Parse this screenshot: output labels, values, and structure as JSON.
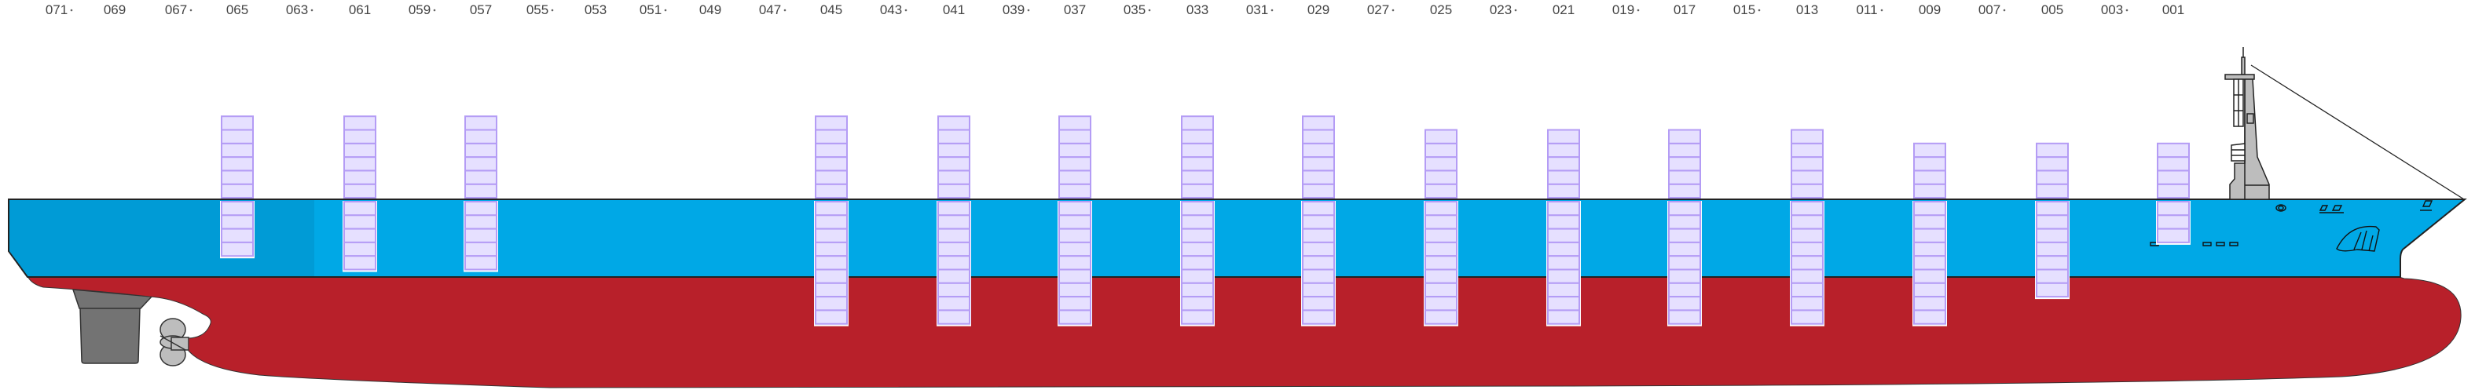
{
  "bay_labels": [
    {
      "text": "071",
      "dot": true
    },
    {
      "text": "069",
      "dot": false
    },
    {
      "text": "067",
      "dot": true
    },
    {
      "text": "065",
      "dot": false
    },
    {
      "text": "063",
      "dot": true
    },
    {
      "text": "061",
      "dot": false
    },
    {
      "text": "059",
      "dot": true
    },
    {
      "text": "057",
      "dot": false
    },
    {
      "text": "055",
      "dot": true
    },
    {
      "text": "053",
      "dot": false
    },
    {
      "text": "051",
      "dot": true
    },
    {
      "text": "049",
      "dot": false
    },
    {
      "text": "047",
      "dot": true
    },
    {
      "text": "045",
      "dot": false
    },
    {
      "text": "043",
      "dot": true
    },
    {
      "text": "041",
      "dot": false
    },
    {
      "text": "039",
      "dot": true
    },
    {
      "text": "037",
      "dot": false
    },
    {
      "text": "035",
      "dot": true
    },
    {
      "text": "033",
      "dot": false
    },
    {
      "text": "031",
      "dot": true
    },
    {
      "text": "029",
      "dot": false
    },
    {
      "text": "027",
      "dot": true
    },
    {
      "text": "025",
      "dot": false
    },
    {
      "text": "023",
      "dot": true
    },
    {
      "text": "021",
      "dot": false
    },
    {
      "text": "019",
      "dot": true
    },
    {
      "text": "017",
      "dot": false
    },
    {
      "text": "015",
      "dot": true
    },
    {
      "text": "013",
      "dot": false
    },
    {
      "text": "011",
      "dot": true
    },
    {
      "text": "009",
      "dot": false
    },
    {
      "text": "007",
      "dot": true
    },
    {
      "text": "005",
      "dot": false
    },
    {
      "text": "003",
      "dot": true
    },
    {
      "text": "001",
      "dot": false
    }
  ],
  "container_stacks": [
    {
      "bay": "065",
      "tiers_above_deck": 6,
      "tiers_below_deck": 4
    },
    {
      "bay": "061",
      "tiers_above_deck": 6,
      "tiers_below_deck": 5
    },
    {
      "bay": "057",
      "tiers_above_deck": 6,
      "tiers_below_deck": 5
    },
    {
      "bay": "045",
      "tiers_above_deck": 6,
      "tiers_below_deck": 9
    },
    {
      "bay": "041",
      "tiers_above_deck": 6,
      "tiers_below_deck": 9
    },
    {
      "bay": "037",
      "tiers_above_deck": 6,
      "tiers_below_deck": 9
    },
    {
      "bay": "033",
      "tiers_above_deck": 6,
      "tiers_below_deck": 9
    },
    {
      "bay": "029",
      "tiers_above_deck": 6,
      "tiers_below_deck": 9
    },
    {
      "bay": "025",
      "tiers_above_deck": 5,
      "tiers_below_deck": 9
    },
    {
      "bay": "021",
      "tiers_above_deck": 5,
      "tiers_below_deck": 9
    },
    {
      "bay": "017",
      "tiers_above_deck": 5,
      "tiers_below_deck": 9
    },
    {
      "bay": "013",
      "tiers_above_deck": 5,
      "tiers_below_deck": 9
    },
    {
      "bay": "009",
      "tiers_above_deck": 4,
      "tiers_below_deck": 9
    },
    {
      "bay": "005",
      "tiers_above_deck": 4,
      "tiers_below_deck": 7
    },
    {
      "bay": "001",
      "tiers_above_deck": 4,
      "tiers_below_deck": 3
    }
  ],
  "colors": {
    "hull_upper": "#00a8e6",
    "hull_upper_stern": "#009bd6",
    "hull_lower": "#b8202a",
    "container_fill": "#e6e0ff",
    "container_stroke": "#b49cf5",
    "gear": "#737373",
    "superstructure": "#bdbdbd"
  }
}
